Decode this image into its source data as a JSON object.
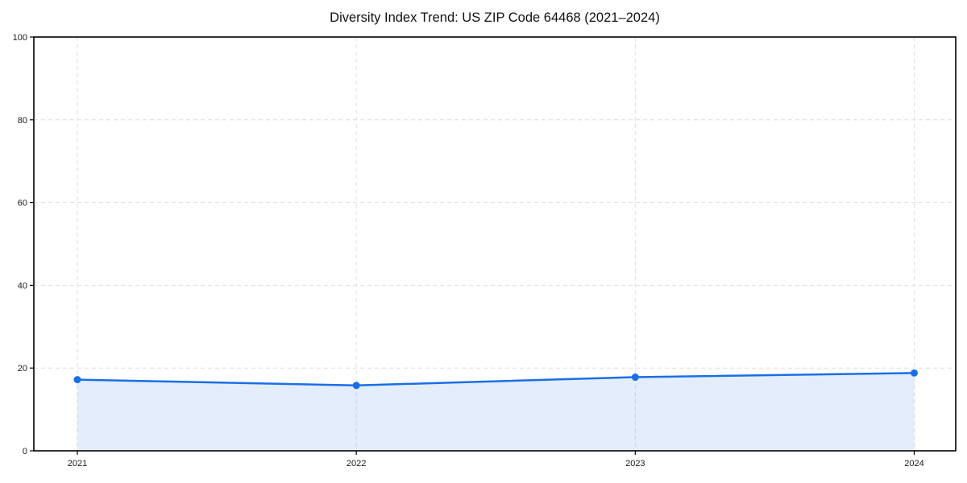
{
  "chart_data": {
    "type": "line",
    "title": "Diversity Index Trend: US ZIP Code 64468 (2021–2024)",
    "categories": [
      "2021",
      "2022",
      "2023",
      "2024"
    ],
    "series": [
      {
        "name": "Diversity Index",
        "values": [
          17.2,
          15.8,
          17.8,
          18.8
        ]
      }
    ],
    "xlabel": "",
    "ylabel": "",
    "ylim": [
      0,
      100
    ],
    "yticks": [
      0,
      20,
      40,
      60,
      80,
      100
    ],
    "grid": "dashed, horizontal and vertical",
    "legend": "none",
    "area_fill_under_line": true,
    "marker": "filled circle",
    "colors": {
      "line": "#1a6fe6",
      "marker": "#1a6fe6",
      "area_fill": "rgba(26,111,230,0.12)",
      "gridline": "#dedede",
      "axis_spine": "#000000",
      "tick_label": "#1a1a1a",
      "title_text": "#111111",
      "background": "#ffffff"
    }
  }
}
